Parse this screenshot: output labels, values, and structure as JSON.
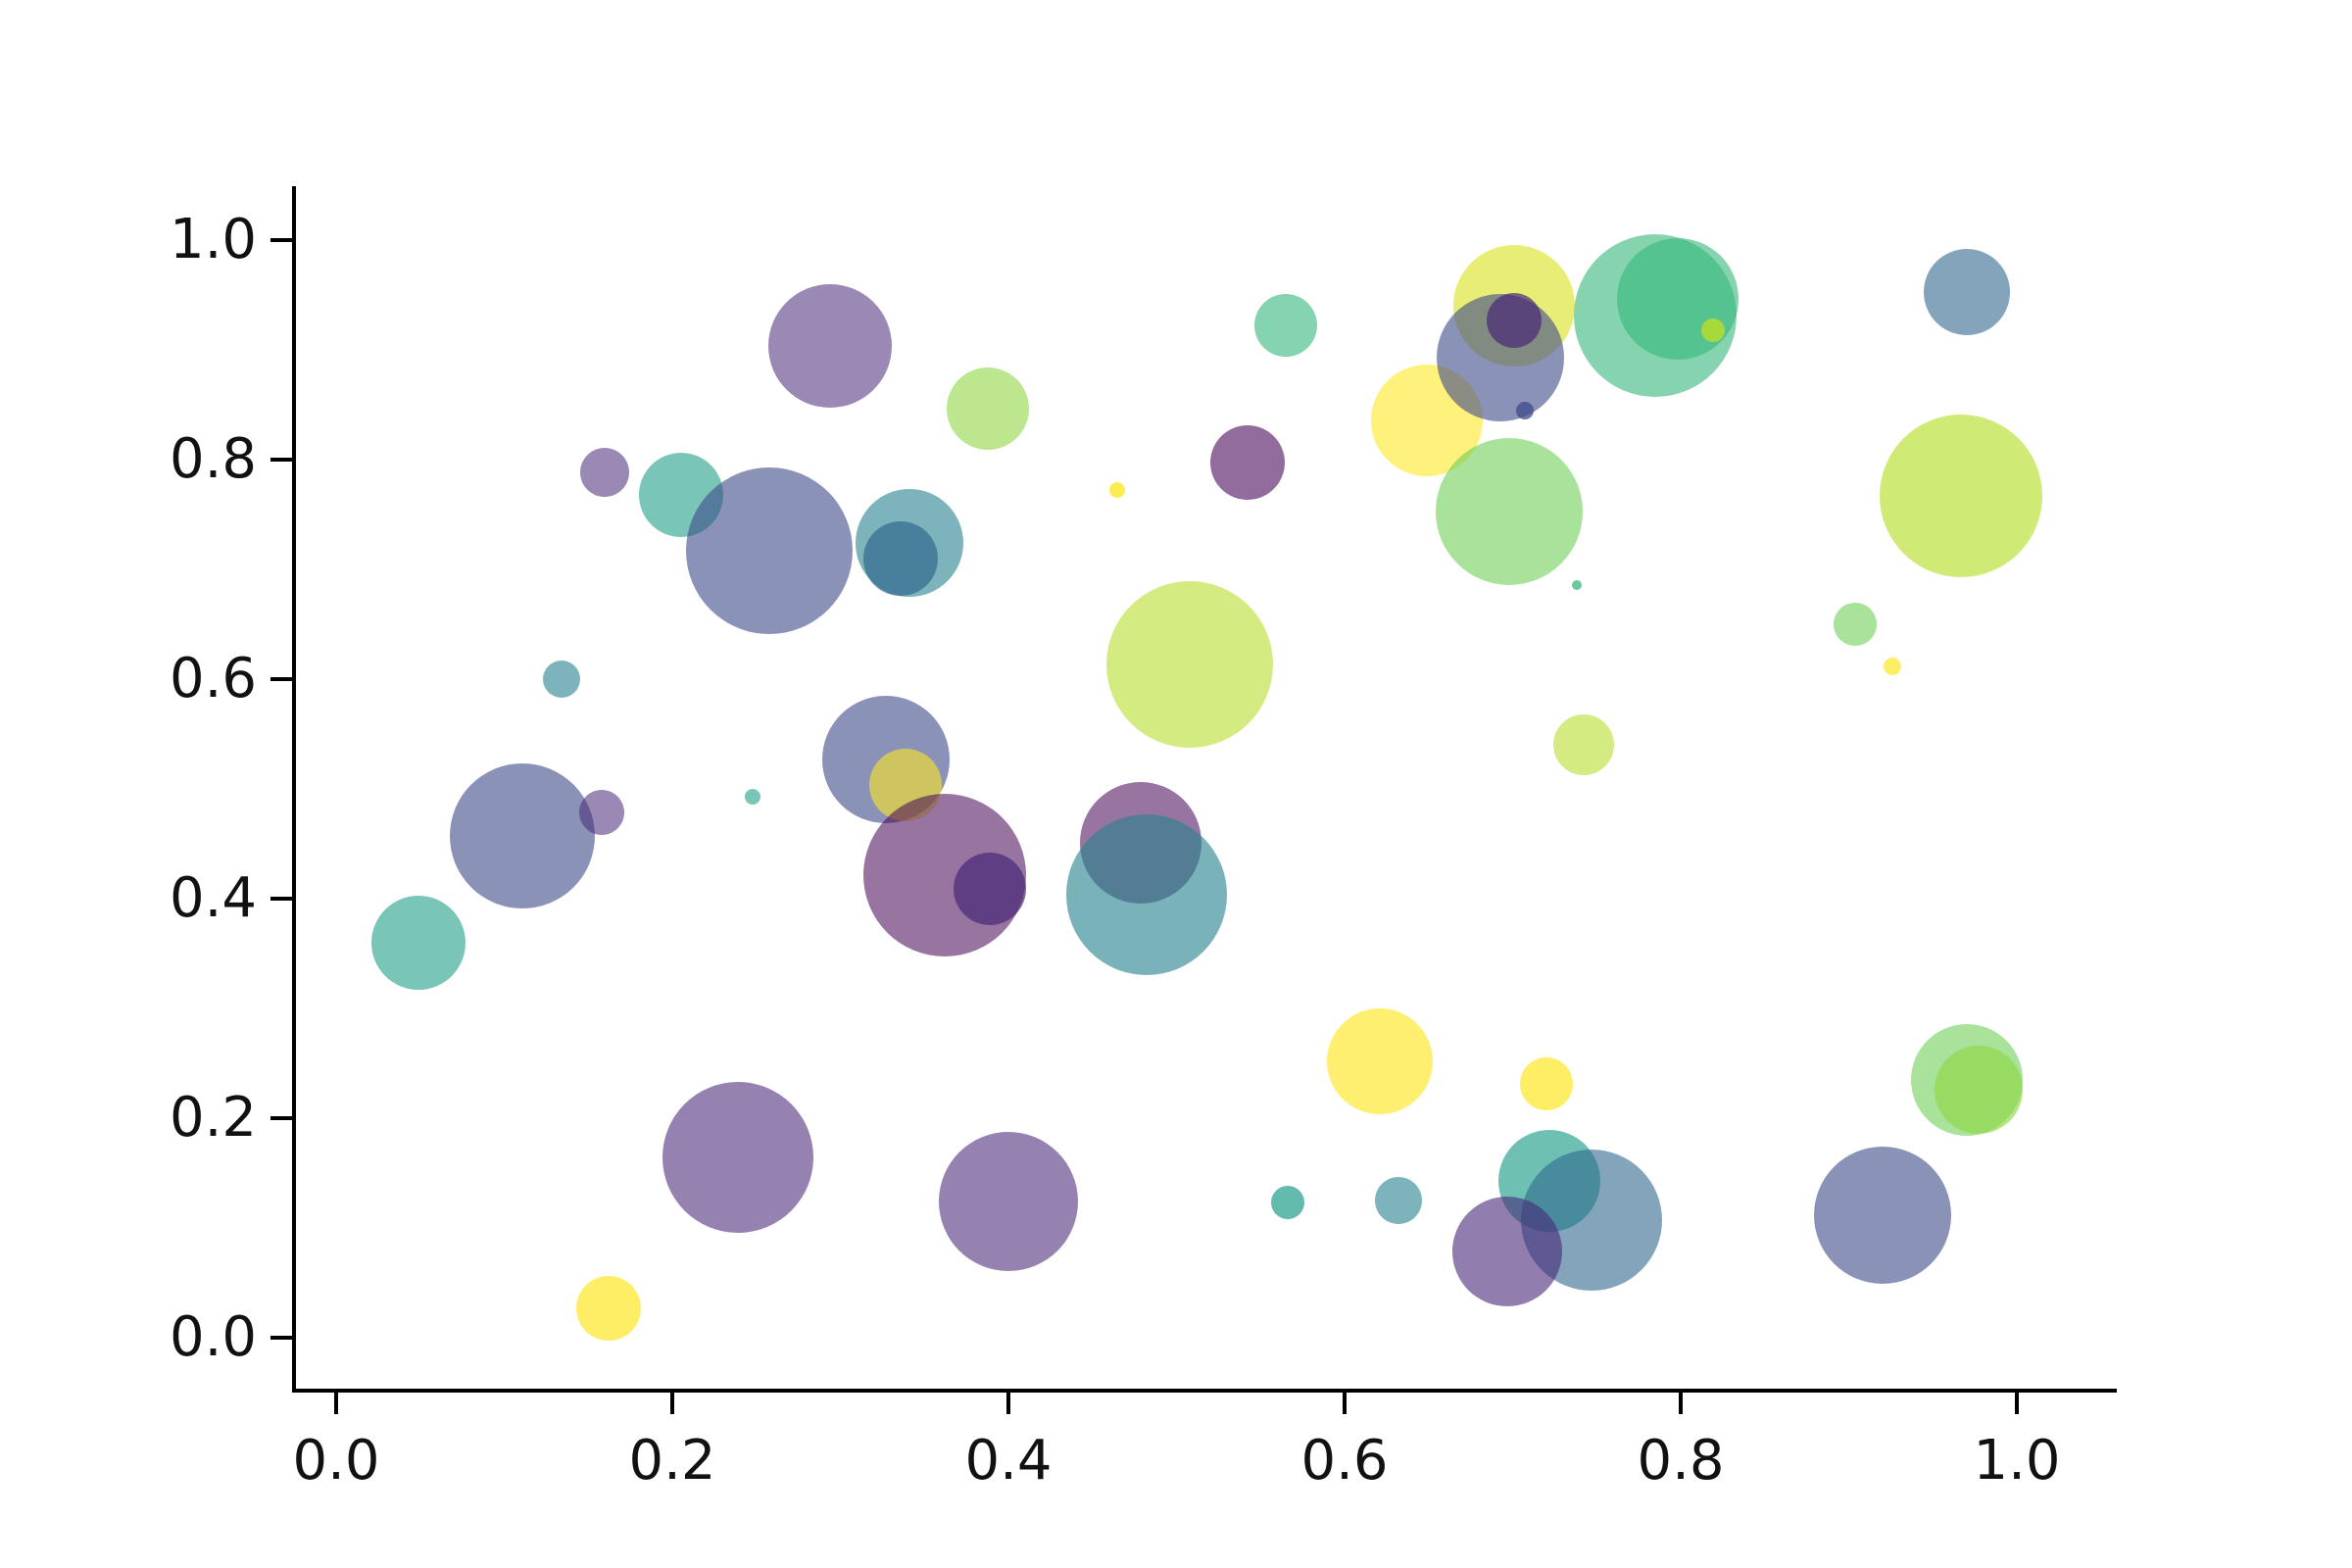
{
  "figure": {
    "background_color": "#ffffff",
    "axis_color": "#000000",
    "tick_label_color": "#111111",
    "title": "",
    "colormap": "viridis"
  },
  "chart_data": {
    "type": "scatter",
    "title": "",
    "xlabel": "",
    "ylabel": "",
    "xlim": [
      -0.025,
      1.057
    ],
    "ylim": [
      -0.048,
      1.047
    ],
    "grid": false,
    "legend": "none",
    "x_tick_values": [
      0.0,
      0.2,
      0.4,
      0.6,
      0.8,
      1.0
    ],
    "x_tick_labels": [
      "0.0",
      "0.2",
      "0.4",
      "0.6",
      "0.8",
      "1.0"
    ],
    "y_tick_values": [
      0.0,
      0.2,
      0.4,
      0.6,
      0.8,
      1.0
    ],
    "y_tick_labels": [
      "0.0",
      "0.2",
      "0.4",
      "0.6",
      "0.8",
      "1.0"
    ],
    "point_alpha_default": 0.6,
    "points": [
      {
        "x": 0.649,
        "y": 0.836,
        "r": 57,
        "color": "#fde725",
        "alpha": 0.6
      },
      {
        "x": 0.701,
        "y": 0.94,
        "r": 62,
        "color": "#d8e219",
        "alpha": 0.6
      },
      {
        "x": 0.693,
        "y": 0.893,
        "r": 65,
        "color": "#3e4989",
        "alpha": 0.6
      },
      {
        "x": 0.701,
        "y": 0.927,
        "r": 28,
        "color": "#482878",
        "alpha": 0.7
      },
      {
        "x": 0.707,
        "y": 0.845,
        "r": 9,
        "color": "#3e4989",
        "alpha": 0.75
      },
      {
        "x": 0.785,
        "y": 0.931,
        "r": 83,
        "color": "#35b779",
        "alpha": 0.6
      },
      {
        "x": 0.798,
        "y": 0.946,
        "r": 62,
        "color": "#35b779",
        "alpha": 0.6
      },
      {
        "x": 0.819,
        "y": 0.918,
        "r": 12,
        "color": "#b5de2b",
        "alpha": 0.85
      },
      {
        "x": 0.97,
        "y": 0.953,
        "r": 44,
        "color": "#31688e",
        "alpha": 0.6
      },
      {
        "x": 0.294,
        "y": 0.904,
        "r": 63,
        "color": "#482878",
        "alpha": 0.55
      },
      {
        "x": 0.388,
        "y": 0.846,
        "r": 42,
        "color": "#8fd744",
        "alpha": 0.6
      },
      {
        "x": 0.565,
        "y": 0.922,
        "r": 32,
        "color": "#35b779",
        "alpha": 0.6
      },
      {
        "x": 0.542,
        "y": 0.797,
        "r": 38,
        "color": "#440154",
        "alpha": 0.58
      },
      {
        "x": 0.465,
        "y": 0.772,
        "r": 8,
        "color": "#fde725",
        "alpha": 0.8
      },
      {
        "x": 0.698,
        "y": 0.753,
        "r": 75,
        "color": "#6ece58",
        "alpha": 0.6
      },
      {
        "x": 0.738,
        "y": 0.686,
        "r": 5,
        "color": "#35b779",
        "alpha": 0.75
      },
      {
        "x": 0.967,
        "y": 0.767,
        "r": 83,
        "color": "#b5de2b",
        "alpha": 0.65
      },
      {
        "x": 0.904,
        "y": 0.65,
        "r": 22,
        "color": "#6ece58",
        "alpha": 0.6
      },
      {
        "x": 0.926,
        "y": 0.612,
        "r": 9,
        "color": "#fde725",
        "alpha": 0.7
      },
      {
        "x": 0.742,
        "y": 0.54,
        "r": 31,
        "color": "#b5de2b",
        "alpha": 0.6
      },
      {
        "x": 0.16,
        "y": 0.788,
        "r": 25,
        "color": "#482878",
        "alpha": 0.55
      },
      {
        "x": 0.205,
        "y": 0.768,
        "r": 43,
        "color": "#1f9e89",
        "alpha": 0.6
      },
      {
        "x": 0.258,
        "y": 0.717,
        "r": 85,
        "color": "#3e4989",
        "alpha": 0.6
      },
      {
        "x": 0.341,
        "y": 0.724,
        "r": 55,
        "color": "#26828e",
        "alpha": 0.6
      },
      {
        "x": 0.336,
        "y": 0.71,
        "r": 38,
        "color": "#31688e",
        "alpha": 0.7
      },
      {
        "x": 0.134,
        "y": 0.6,
        "r": 19,
        "color": "#26828e",
        "alpha": 0.6
      },
      {
        "x": 0.111,
        "y": 0.457,
        "r": 74,
        "color": "#3e4989",
        "alpha": 0.6
      },
      {
        "x": 0.158,
        "y": 0.479,
        "r": 23,
        "color": "#482878",
        "alpha": 0.55
      },
      {
        "x": 0.049,
        "y": 0.36,
        "r": 48,
        "color": "#1f9e89",
        "alpha": 0.6
      },
      {
        "x": 0.248,
        "y": 0.493,
        "r": 8,
        "color": "#1f9e89",
        "alpha": 0.6
      },
      {
        "x": 0.508,
        "y": 0.613,
        "r": 85,
        "color": "#b5de2b",
        "alpha": 0.6
      },
      {
        "x": 0.327,
        "y": 0.527,
        "r": 65,
        "color": "#3e4989",
        "alpha": 0.6
      },
      {
        "x": 0.339,
        "y": 0.504,
        "r": 37,
        "color": "#fde725",
        "alpha": 0.6
      },
      {
        "x": 0.362,
        "y": 0.421,
        "r": 83,
        "color": "#440154",
        "alpha": 0.55
      },
      {
        "x": 0.389,
        "y": 0.409,
        "r": 37,
        "color": "#482878",
        "alpha": 0.7
      },
      {
        "x": 0.479,
        "y": 0.451,
        "r": 62,
        "color": "#440154",
        "alpha": 0.55
      },
      {
        "x": 0.482,
        "y": 0.404,
        "r": 82,
        "color": "#26828e",
        "alpha": 0.62
      },
      {
        "x": 0.621,
        "y": 0.252,
        "r": 54,
        "color": "#fde725",
        "alpha": 0.65
      },
      {
        "x": 0.72,
        "y": 0.231,
        "r": 27,
        "color": "#fde725",
        "alpha": 0.7
      },
      {
        "x": 0.239,
        "y": 0.164,
        "r": 77,
        "color": "#482878",
        "alpha": 0.58
      },
      {
        "x": 0.4,
        "y": 0.124,
        "r": 71,
        "color": "#482878",
        "alpha": 0.58
      },
      {
        "x": 0.162,
        "y": 0.027,
        "r": 33,
        "color": "#fde725",
        "alpha": 0.7
      },
      {
        "x": 0.566,
        "y": 0.123,
        "r": 17,
        "color": "#1f9e89",
        "alpha": 0.7
      },
      {
        "x": 0.632,
        "y": 0.125,
        "r": 24,
        "color": "#26828e",
        "alpha": 0.6
      },
      {
        "x": 0.722,
        "y": 0.143,
        "r": 52,
        "color": "#1f9e89",
        "alpha": 0.65
      },
      {
        "x": 0.747,
        "y": 0.107,
        "r": 72,
        "color": "#31688e",
        "alpha": 0.6
      },
      {
        "x": 0.697,
        "y": 0.079,
        "r": 56,
        "color": "#482878",
        "alpha": 0.6
      },
      {
        "x": 0.92,
        "y": 0.112,
        "r": 70,
        "color": "#3e4989",
        "alpha": 0.6
      },
      {
        "x": 0.97,
        "y": 0.235,
        "r": 57,
        "color": "#6ece58",
        "alpha": 0.6
      },
      {
        "x": 0.977,
        "y": 0.226,
        "r": 45,
        "color": "#8fd744",
        "alpha": 0.65
      }
    ]
  }
}
